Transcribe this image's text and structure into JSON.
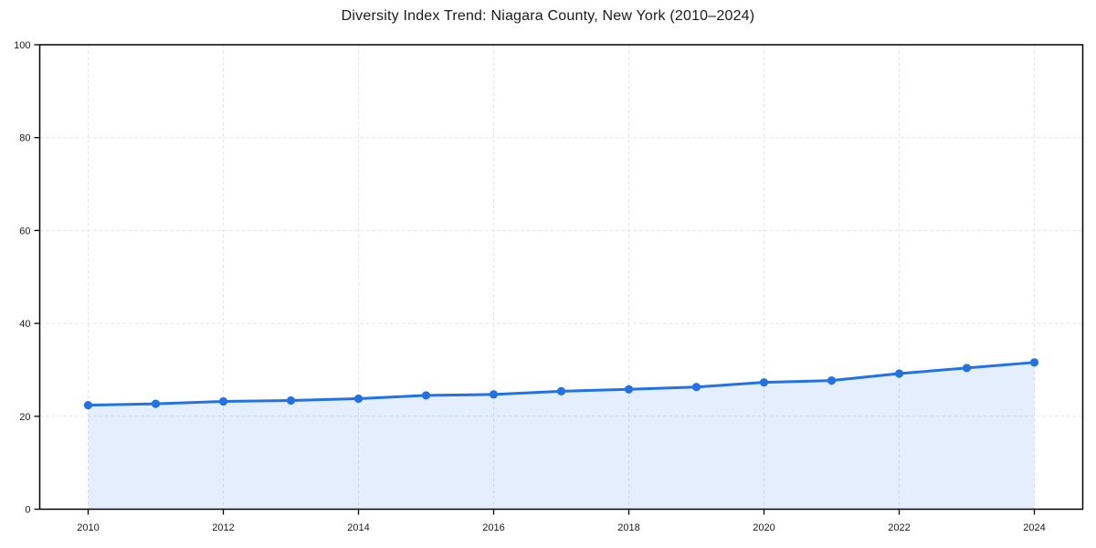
{
  "chart_data": {
    "type": "line",
    "title": "Diversity Index Trend: Niagara County, New York (2010–2024)",
    "x": [
      2010,
      2011,
      2012,
      2013,
      2014,
      2015,
      2016,
      2017,
      2018,
      2019,
      2020,
      2021,
      2022,
      2023,
      2024
    ],
    "series": [
      {
        "name": "Diversity Index",
        "values": [
          22.4,
          22.7,
          23.2,
          23.4,
          23.8,
          24.5,
          24.7,
          25.4,
          25.8,
          26.3,
          27.3,
          27.7,
          29.2,
          30.4,
          31.6
        ]
      }
    ],
    "xlabel": "",
    "ylabel": "",
    "ylim": [
      0,
      100
    ],
    "y_ticks": [
      0,
      20,
      40,
      60,
      80,
      100
    ],
    "y_tick_labels": [
      "0",
      "20",
      "40",
      "60",
      "80",
      "100"
    ],
    "x_ticks": [
      2010,
      2012,
      2014,
      2016,
      2018,
      2020,
      2022,
      2024
    ],
    "x_tick_labels": [
      "2010",
      "2012",
      "2014",
      "2016",
      "2018",
      "2020",
      "2022",
      "2024"
    ],
    "grid": "dashed, light gray, vertical every 2 years and horizontal every 20 units",
    "legend": "none",
    "marker": "circle",
    "area_fill": true,
    "colors": {
      "line": "#2272e5",
      "marker": "#2272e5",
      "area": "rgba(34, 114, 229, 0.12)",
      "gridline": "#e5e5e5",
      "axis": "#000000",
      "tick_text": "#1a1a1a",
      "background": "#ffffff"
    }
  }
}
